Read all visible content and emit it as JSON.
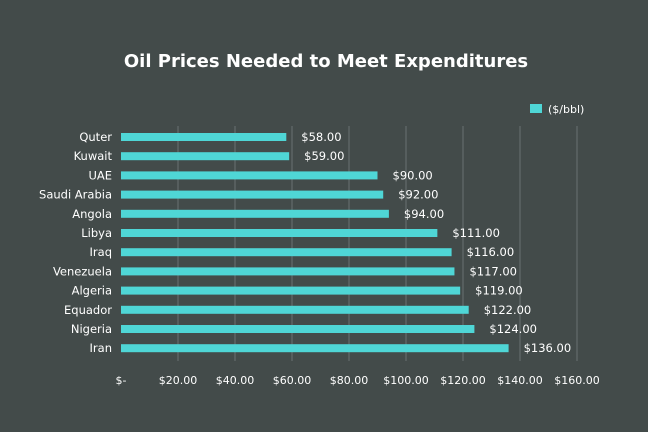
{
  "chart_data": {
    "type": "bar",
    "orientation": "horizontal",
    "title": "Oil Prices Needed to Meet Expenditures",
    "categories": [
      "Quter",
      "Kuwait",
      "UAE",
      "Saudi Arabia",
      "Angola",
      "Libya",
      "Iraq",
      "Venezuela",
      "Algeria",
      "Equador",
      "Nigeria",
      "Iran"
    ],
    "series": [
      {
        "name": "($/bbl)",
        "values": [
          58,
          59,
          90,
          92,
          94,
          111,
          116,
          117,
          119,
          122,
          124,
          136
        ],
        "labels": [
          "$58.00",
          "$59.00",
          "$90.00",
          "$92.00",
          "$94.00",
          "$111.00",
          "$116.00",
          "$117.00",
          "$119.00",
          "$122.00",
          "$124.00",
          "$136.00"
        ]
      }
    ],
    "xlim": [
      0,
      160
    ],
    "xticks": [
      0,
      20,
      40,
      60,
      80,
      100,
      120,
      140,
      160
    ],
    "xtick_labels": [
      "$-",
      "$20.00",
      "$40.00",
      "$60.00",
      "$80.00",
      "$100.00",
      "$120.00",
      "$140.00",
      "$160.00"
    ],
    "grid": "vertical",
    "legend": "top-right",
    "colors": {
      "background": "#434b4a",
      "bar": "#4fd6d6",
      "grid": "#6a7271",
      "text": "#ffffff"
    }
  }
}
